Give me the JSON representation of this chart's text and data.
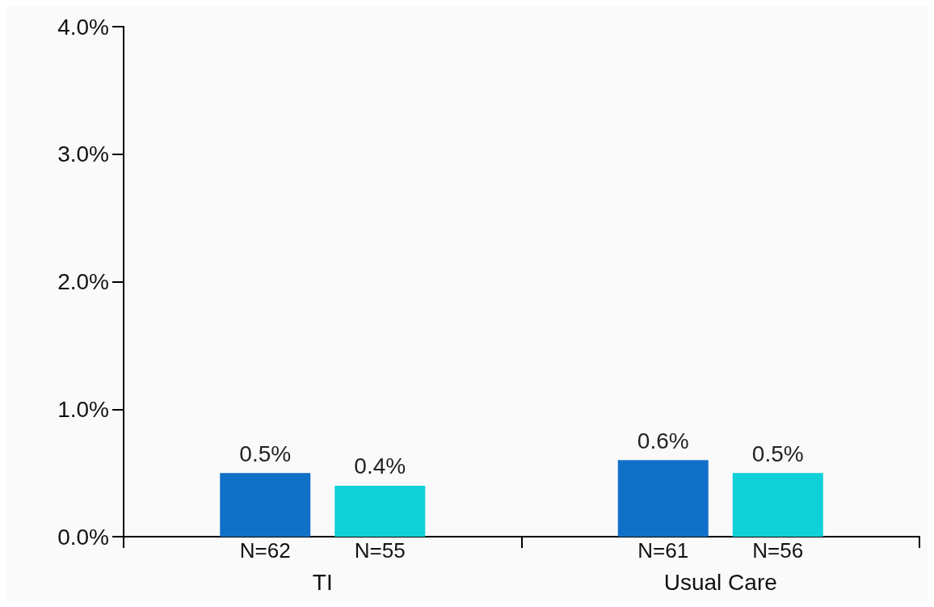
{
  "chart_data": {
    "type": "bar",
    "categories": [
      "TI",
      "Usual Care"
    ],
    "series": [
      {
        "color": "#1170c8",
        "values": [
          0.5,
          0.6
        ],
        "value_labels": [
          "0.5%",
          "0.6%"
        ]
      },
      {
        "color": "#10d0d8",
        "values": [
          0.4,
          0.5
        ],
        "value_labels": [
          "0.4%",
          "0.5%"
        ]
      }
    ],
    "ylim": [
      0,
      4
    ],
    "yticks": [
      {
        "value": 0,
        "label": "0.0%"
      },
      {
        "value": 1,
        "label": "1.0%"
      },
      {
        "value": 2,
        "label": "2.0%"
      },
      {
        "value": 3,
        "label": "3.0%"
      },
      {
        "value": 4,
        "label": "4.0%"
      }
    ],
    "annotations": [
      "N=62",
      "N=55",
      "N=61",
      "N=56"
    ],
    "grid": false
  }
}
